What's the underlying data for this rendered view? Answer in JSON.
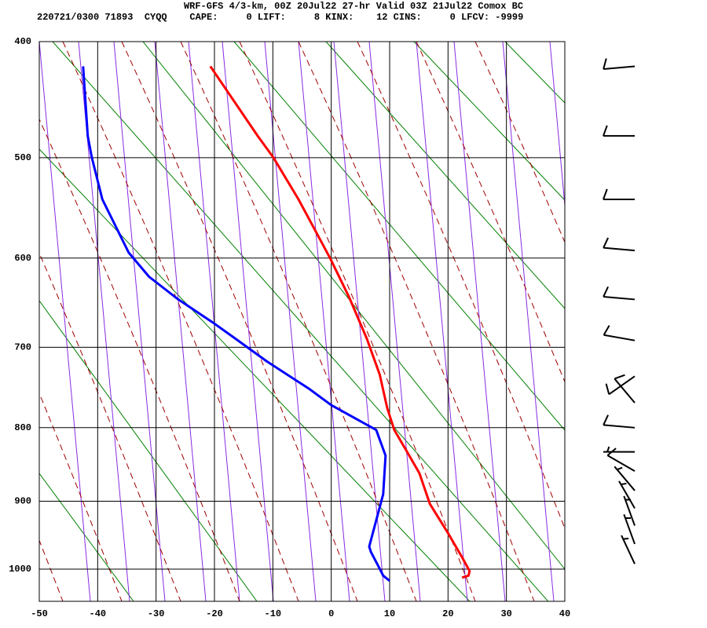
{
  "chart_data": {
    "type": "skew-t",
    "title": "WRF-GFS 4/3-km, 00Z 20Jul22 27-hr Valid 03Z 21Jul22 Comox BC",
    "subtitle": "220721/0300 71893  CYQQ    CAPE:     0 LIFT:     8 KINX:    12 CINS:     0 LFCV: -9999",
    "xlim": [
      -50,
      40
    ],
    "xticks": [
      -50,
      -40,
      -30,
      -20,
      -10,
      0,
      10,
      20,
      30,
      40
    ],
    "ylim": [
      400,
      1050
    ],
    "yticks": [
      400,
      500,
      600,
      700,
      800,
      900,
      1000
    ],
    "grid": true,
    "series": [
      {
        "color": "#ff0000",
        "x": [
          -20.7,
          -12.6,
          -9.9,
          -5.6,
          -0.2,
          3.1,
          6.1,
          8.3,
          9.6,
          10.8,
          13.0,
          15.1,
          16.9,
          20.0,
          22.4,
          23.7,
          23.5,
          22.4
        ],
        "y": [
          420,
          480,
          500,
          540,
          600,
          643,
          690,
          733,
          775,
          803,
          832,
          861,
          904,
          946,
          982,
          1003,
          1010,
          1013
        ]
      },
      {
        "color": "#0000ff",
        "x": [
          -42.5,
          -41.7,
          -41.0,
          -39.2,
          -34.7,
          -31.2,
          -26.2,
          -20.1,
          -16.4,
          -11.0,
          -3.7,
          0.0,
          7.7,
          9.3,
          8.9,
          6.5,
          6.8,
          8.1,
          8.9,
          10.0
        ],
        "y": [
          420,
          480,
          500,
          540,
          594,
          620,
          645,
          672,
          690,
          717,
          751,
          771,
          803,
          837,
          890,
          966,
          974,
          996,
          1010,
          1018
        ]
      }
    ],
    "winds": [
      {
        "p": 420,
        "dir": 265,
        "speed": 10
      },
      {
        "p": 480,
        "dir": 270,
        "speed": 10
      },
      {
        "p": 540,
        "dir": 270,
        "speed": 10
      },
      {
        "p": 592,
        "dir": 275,
        "speed": 10
      },
      {
        "p": 645,
        "dir": 275,
        "speed": 10
      },
      {
        "p": 692,
        "dir": 280,
        "speed": 10
      },
      {
        "p": 735,
        "dir": 235,
        "speed": 10
      },
      {
        "p": 768,
        "dir": 320,
        "speed": 10
      },
      {
        "p": 800,
        "dir": 275,
        "speed": 10
      },
      {
        "p": 832,
        "dir": 270,
        "speed": 5
      },
      {
        "p": 858,
        "dir": 300,
        "speed": 10
      },
      {
        "p": 885,
        "dir": 320,
        "speed": 5
      },
      {
        "p": 910,
        "dir": 330,
        "speed": 5
      },
      {
        "p": 935,
        "dir": 340,
        "speed": 5
      },
      {
        "p": 962,
        "dir": 340,
        "speed": 5
      },
      {
        "p": 992,
        "dir": 335,
        "speed": 5
      }
    ]
  }
}
